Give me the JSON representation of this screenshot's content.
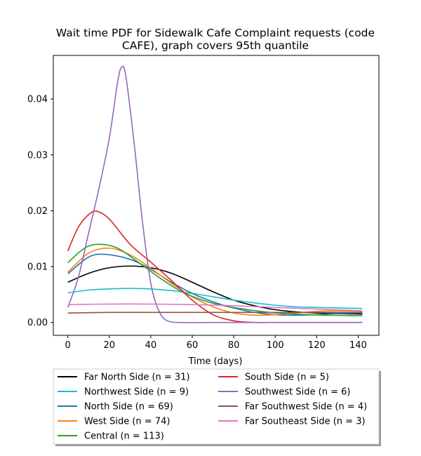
{
  "chart_data": {
    "type": "line",
    "title_line1": "Wait time PDF for Sidewalk Cafe Complaint  requests (code",
    "title_line2": "CAFE), graph covers 95th quantile",
    "xlabel": "Time (days)",
    "ylabel": "",
    "xlim": [
      -7,
      150
    ],
    "ylim": [
      -0.0023,
      0.0478
    ],
    "xticks": [
      0,
      20,
      40,
      60,
      80,
      100,
      120,
      140
    ],
    "yticks": [
      0.0,
      0.01,
      0.02,
      0.03,
      0.04
    ],
    "ytick_labels": [
      "0.00",
      "0.01",
      "0.02",
      "0.03",
      "0.04"
    ],
    "grid": false,
    "legend_placement": "below plot, two columns",
    "series": [
      {
        "name": "Far North Side (n = 31)",
        "color": "#000000",
        "x": [
          0,
          10,
          20,
          30,
          40,
          50,
          60,
          70,
          80,
          90,
          100,
          110,
          120,
          130,
          142
        ],
        "y": [
          0.0072,
          0.0088,
          0.0098,
          0.0101,
          0.0098,
          0.0088,
          0.0072,
          0.0055,
          0.004,
          0.003,
          0.0023,
          0.0019,
          0.0017,
          0.0016,
          0.0015
        ]
      },
      {
        "name": "Northwest Side (n = 9)",
        "color": "#17becf",
        "x": [
          0,
          10,
          20,
          30,
          40,
          50,
          60,
          70,
          80,
          90,
          100,
          110,
          120,
          130,
          142
        ],
        "y": [
          0.0053,
          0.0058,
          0.006,
          0.0061,
          0.006,
          0.0057,
          0.0052,
          0.0046,
          0.004,
          0.0035,
          0.0031,
          0.0028,
          0.0027,
          0.0026,
          0.0025
        ]
      },
      {
        "name": "North Side (n = 69)",
        "color": "#1f77b4",
        "x": [
          0,
          10,
          18,
          30,
          40,
          50,
          60,
          70,
          80,
          90,
          100,
          110,
          120,
          130,
          142
        ],
        "y": [
          0.0087,
          0.0117,
          0.0122,
          0.0113,
          0.0095,
          0.0072,
          0.0052,
          0.0037,
          0.0026,
          0.0018,
          0.0014,
          0.0013,
          0.0014,
          0.0016,
          0.0017
        ]
      },
      {
        "name": "West Side (n = 74)",
        "color": "#ff7f0e",
        "x": [
          0,
          10,
          20,
          30,
          40,
          50,
          60,
          70,
          80,
          90,
          100,
          110,
          120,
          130,
          142
        ],
        "y": [
          0.009,
          0.0124,
          0.0133,
          0.0121,
          0.0097,
          0.007,
          0.0046,
          0.0028,
          0.0017,
          0.0013,
          0.0014,
          0.0017,
          0.002,
          0.0021,
          0.002
        ]
      },
      {
        "name": "Central (n = 113)",
        "color": "#2ca02c",
        "x": [
          0,
          8,
          15,
          24,
          35,
          45,
          55,
          65,
          75,
          85,
          95,
          105,
          115,
          125,
          142
        ],
        "y": [
          0.0107,
          0.0133,
          0.014,
          0.0133,
          0.0105,
          0.0078,
          0.0055,
          0.004,
          0.003,
          0.0024,
          0.0019,
          0.0016,
          0.0014,
          0.0013,
          0.0012
        ]
      },
      {
        "name": "South Side (n = 5)",
        "color": "#d62728",
        "x": [
          0,
          5,
          10,
          14,
          20,
          30,
          40,
          50,
          60,
          70,
          80,
          90,
          100,
          120,
          142
        ],
        "y": [
          0.0128,
          0.017,
          0.0193,
          0.0199,
          0.0185,
          0.014,
          0.0108,
          0.0075,
          0.004,
          0.0014,
          0.0003,
          0.0,
          0.0,
          0.0,
          0.0
        ]
      },
      {
        "name": "Southwest Side (n = 6)",
        "color": "#9467bd",
        "x": [
          0,
          5,
          10,
          15,
          20,
          24,
          26,
          28,
          32,
          36,
          40,
          44,
          48,
          55,
          70,
          142
        ],
        "y": [
          0.0027,
          0.008,
          0.016,
          0.024,
          0.033,
          0.043,
          0.0457,
          0.044,
          0.032,
          0.018,
          0.007,
          0.002,
          0.0003,
          0.0,
          0.0,
          0.0
        ]
      },
      {
        "name": "Far Southwest Side (n = 4)",
        "color": "#8c564b",
        "x": [
          0,
          20,
          40,
          60,
          80,
          100,
          120,
          142
        ],
        "y": [
          0.0017,
          0.0018,
          0.0018,
          0.0018,
          0.0018,
          0.0018,
          0.0018,
          0.0018
        ]
      },
      {
        "name": "Far Southeast Side (n = 3)",
        "color": "#e377c2",
        "x": [
          0,
          20,
          40,
          60,
          80,
          100,
          120,
          142
        ],
        "y": [
          0.0032,
          0.0033,
          0.0033,
          0.0032,
          0.003,
          0.0027,
          0.0024,
          0.0021
        ]
      }
    ]
  }
}
